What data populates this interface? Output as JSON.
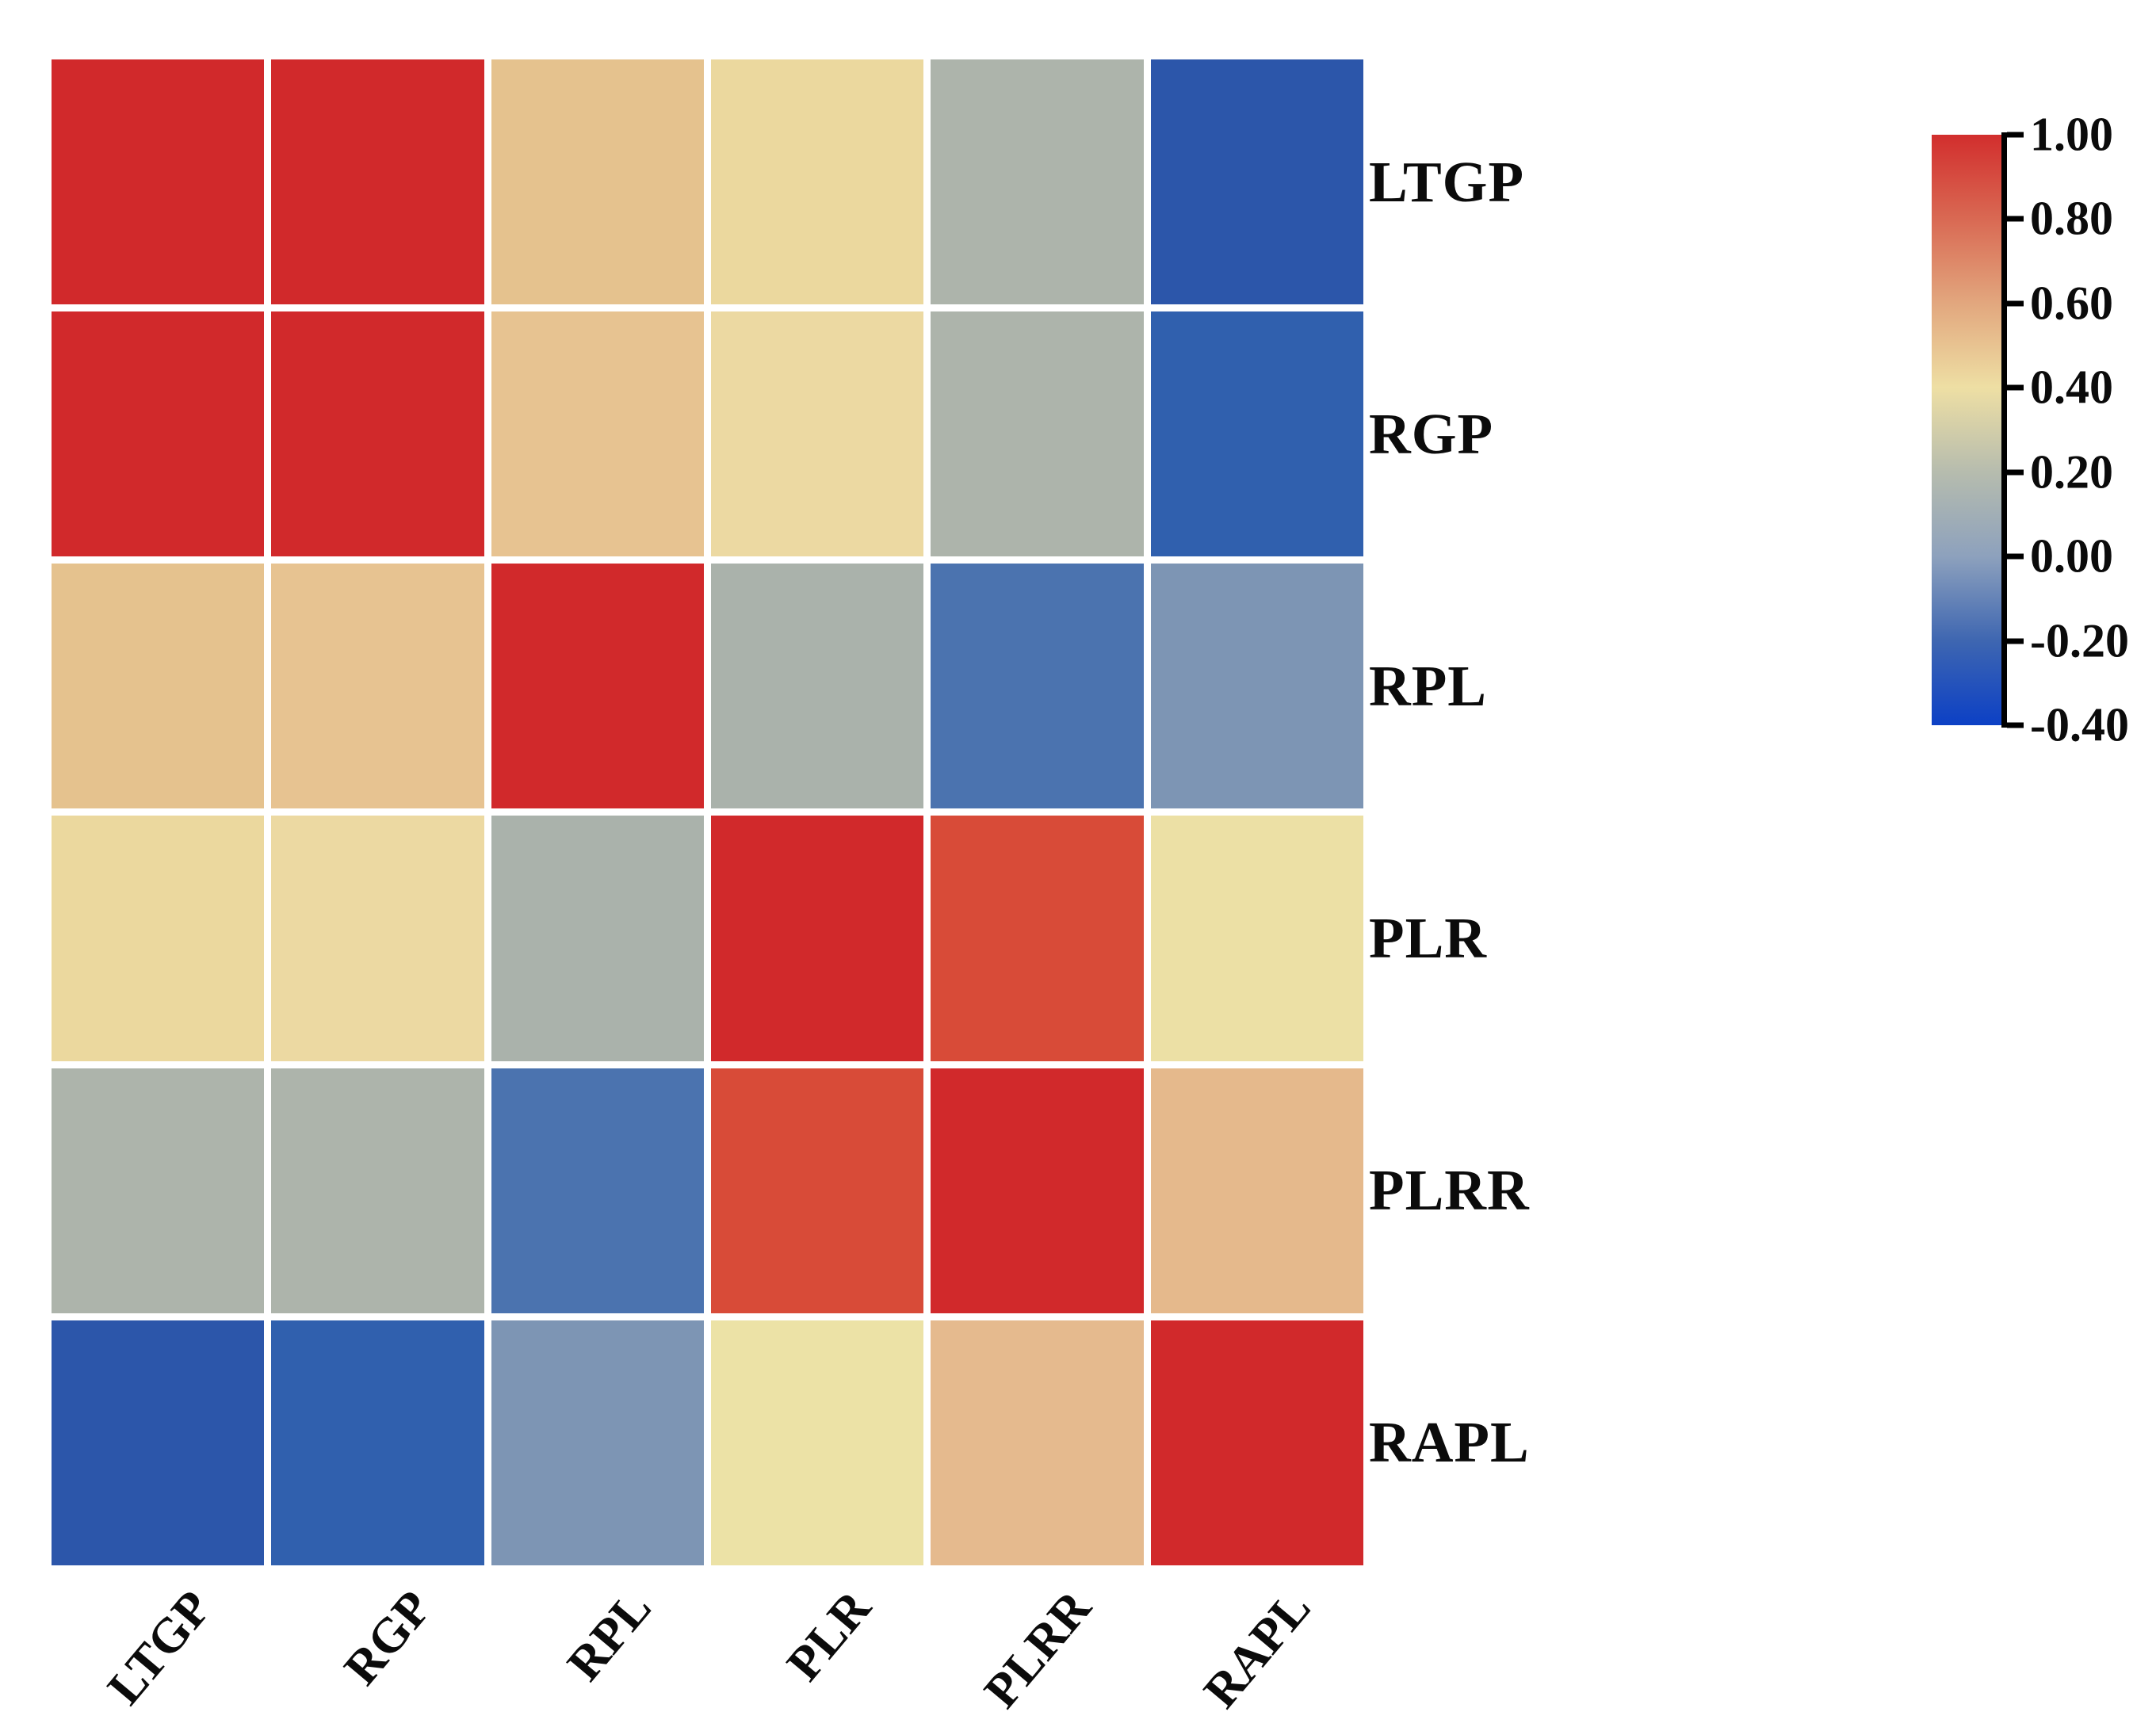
{
  "figure": {
    "background_color": "#ffffff",
    "grid_gap_color": "#ffffff"
  },
  "chart_data": {
    "type": "heatmap",
    "title": "",
    "variables": [
      "LTGP",
      "RGP",
      "RPL",
      "PLR",
      "PLRR",
      "RAPL"
    ],
    "row_labels": [
      "LTGP",
      "RGP",
      "RPL",
      "PLR",
      "PLRR",
      "RAPL"
    ],
    "col_labels": [
      "LTGP",
      "RGP",
      "RPL",
      "PLR",
      "PLRR",
      "RAPL"
    ],
    "matrix": [
      [
        1.0,
        0.97,
        0.5,
        0.42,
        0.2,
        -0.25
      ],
      [
        0.97,
        1.0,
        0.52,
        0.43,
        0.2,
        -0.22
      ],
      [
        0.5,
        0.52,
        1.0,
        0.2,
        -0.12,
        0.01
      ],
      [
        0.42,
        0.43,
        0.2,
        1.0,
        0.85,
        0.4
      ],
      [
        0.2,
        0.2,
        -0.12,
        0.85,
        1.0,
        0.55
      ],
      [
        -0.25,
        -0.22,
        0.01,
        0.4,
        0.55,
        1.0
      ]
    ],
    "cell_colors": [
      [
        "#d1292b",
        "#d1292b",
        "#e5c28e",
        "#ebd89e",
        "#adb4ab",
        "#2c56aa"
      ],
      [
        "#d1292b",
        "#d1292b",
        "#e7c391",
        "#ecd9a2",
        "#adb4ab",
        "#3060ae"
      ],
      [
        "#e5c28e",
        "#e7c391",
        "#d1292b",
        "#aab2ab",
        "#4b73af",
        "#7d95b4"
      ],
      [
        "#ebd89e",
        "#ecd9a2",
        "#aab2ab",
        "#d1292b",
        "#d84b38",
        "#ece0a5"
      ],
      [
        "#adb4ab",
        "#adb4ab",
        "#4b73af",
        "#d84b38",
        "#d1292b",
        "#e5b98c"
      ],
      [
        "#2c56aa",
        "#3060ae",
        "#7d95b4",
        "#ece2a6",
        "#e5ba8e",
        "#d1292b"
      ]
    ],
    "x_tick_rotation_deg": 50,
    "grid_on": false,
    "colorbar": {
      "position": "right",
      "vmin": -0.4,
      "vmax": 1.0,
      "tick_labels": [
        "1.00",
        "0.80",
        "0.60",
        "0.40",
        "0.20",
        "0.00",
        "-0.20",
        "-0.40"
      ],
      "tick_values": [
        1.0,
        0.8,
        0.6,
        0.4,
        0.2,
        0.0,
        -0.2,
        -0.4
      ],
      "gradient_stops_top_to_bottom": [
        "#d22e2d",
        "#d96953",
        "#e2a77e",
        "#eedfa4",
        "#b6bcae",
        "#8da1bd",
        "#3e66b1",
        "#0c40c5"
      ]
    }
  }
}
